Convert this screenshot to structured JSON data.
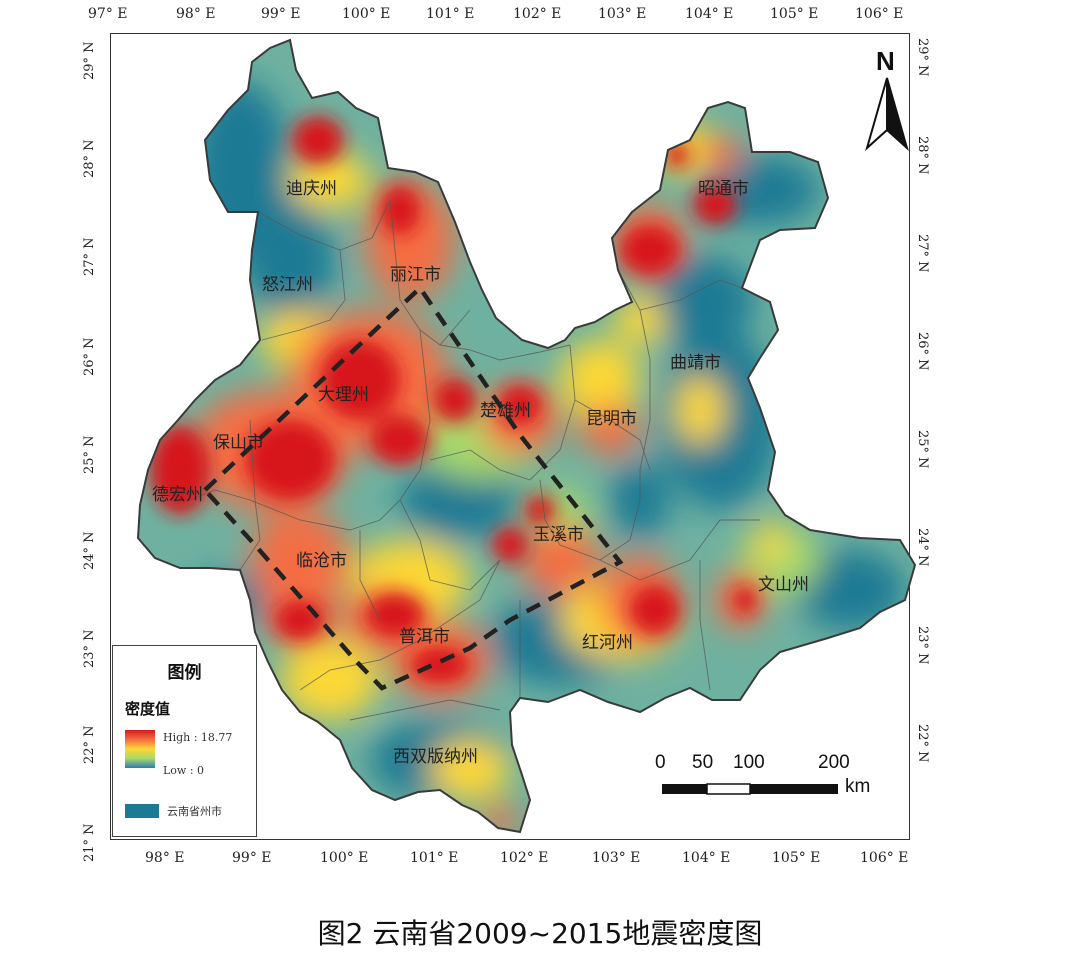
{
  "title": "图2  云南省2009~2015地震密度图",
  "lon_labels_top": [
    "97° E",
    "98° E",
    "99° E",
    "100° E",
    "101° E",
    "102° E",
    "103° E",
    "104° E",
    "105° E",
    "106° E"
  ],
  "lon_labels_bottom": [
    "98° E",
    "99° E",
    "100° E",
    "101° E",
    "102° E",
    "103° E",
    "104° E",
    "105° E",
    "106° E"
  ],
  "lat_labels_left": [
    "29° N",
    "28° N",
    "27° N",
    "26° N",
    "25° N",
    "24° N",
    "23° N",
    "22° N",
    "21° N"
  ],
  "lat_labels_right": [
    "29° N",
    "28° N",
    "27° N",
    "26° N",
    "25° N",
    "24° N",
    "23° N",
    "22° N"
  ],
  "regions": [
    {
      "name": "迪庆州"
    },
    {
      "name": "怒江州"
    },
    {
      "name": "丽江市"
    },
    {
      "name": "昭通市"
    },
    {
      "name": "曲靖市"
    },
    {
      "name": "大理州"
    },
    {
      "name": "楚雄州"
    },
    {
      "name": "昆明市"
    },
    {
      "name": "保山市"
    },
    {
      "name": "德宏州"
    },
    {
      "name": "玉溪市"
    },
    {
      "name": "临沧市"
    },
    {
      "name": "文山州"
    },
    {
      "name": "普洱市"
    },
    {
      "name": "红河州"
    },
    {
      "name": "西双版纳州"
    }
  ],
  "legend": {
    "title": "图例",
    "density_label": "密度值",
    "high_label": "High : 18.77",
    "low_label": "Low : 0",
    "boundary_label": "云南省州市"
  },
  "north": {
    "letter": "N"
  },
  "scale": {
    "ticks": [
      "0",
      "50",
      "100",
      "200"
    ],
    "unit": "km"
  },
  "colors": {
    "high": "#d7191c",
    "mid_high": "#f46d43",
    "mid": "#fdd835",
    "mid_low": "#a6d96a",
    "low": "#1d7a94"
  }
}
